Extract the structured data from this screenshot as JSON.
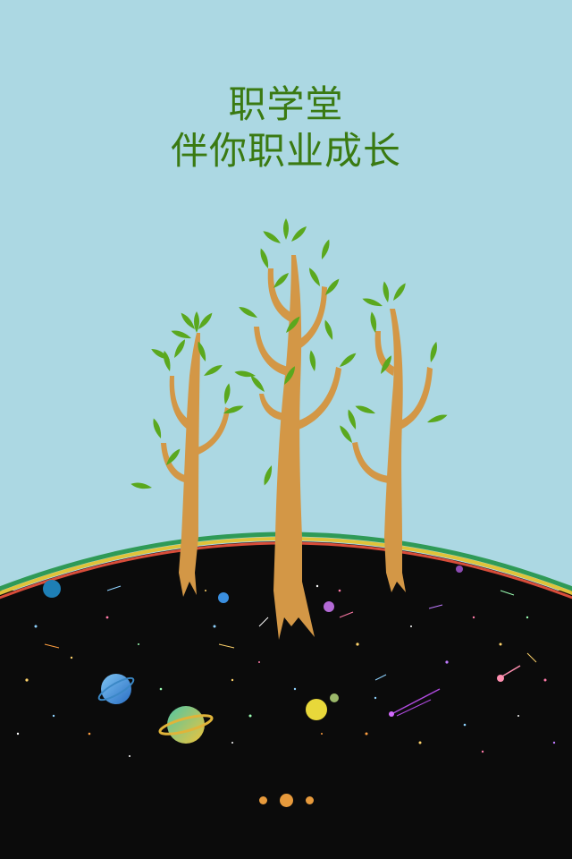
{
  "headline": {
    "line1": "职学堂",
    "line2": "伴你职业成长"
  },
  "colors": {
    "sky": "#acd8e3",
    "headline": "#3a7a12",
    "trunk": "#d39746",
    "leaf": "#5aa81e",
    "ground": "#0b0b0b",
    "pager_dot": "#e79a3c"
  },
  "pager": {
    "count": 3,
    "active_index": 1
  },
  "icons": [
    "tree-illustration",
    "planet-icon",
    "comet-icon"
  ]
}
